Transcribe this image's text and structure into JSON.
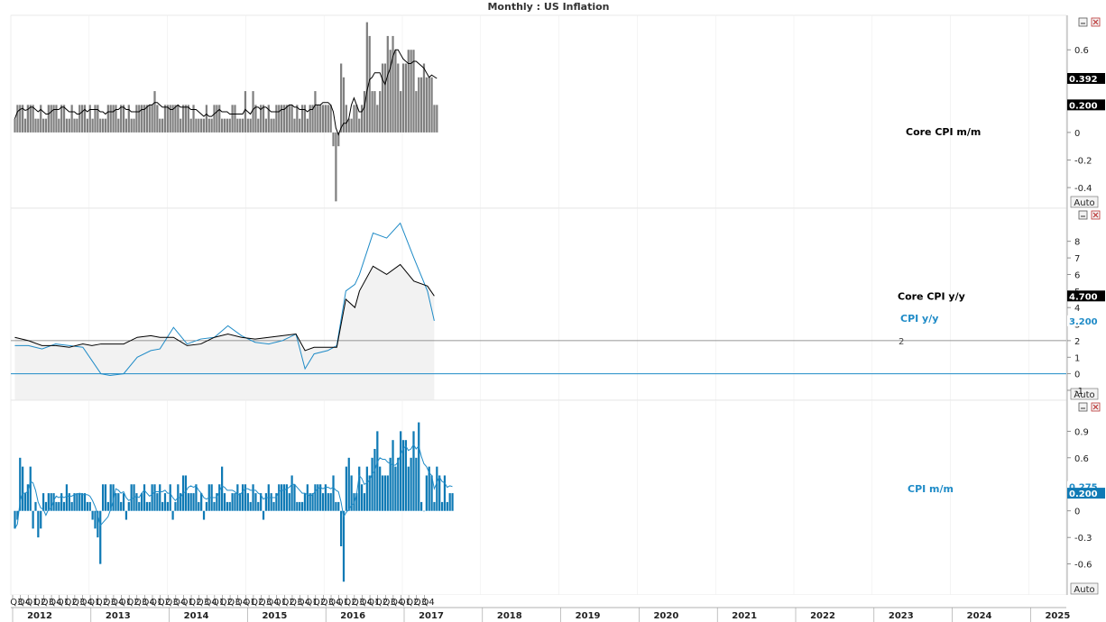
{
  "window": {
    "title": "Monthly : US Inflation",
    "auto_label": "Auto",
    "minimize_icon": "minimize-icon",
    "close_icon": "close-icon"
  },
  "colors": {
    "core_bar": "#808080",
    "core_line": "#000000",
    "cpi_blue": "#1f8bc7",
    "cpi_bar": "#0f7ab5",
    "panel_bg": "#ffffff",
    "area_fill": "#f2f2f2",
    "grid": "#eeeeee"
  },
  "x_axis": {
    "quarter_labels": [
      "Q3",
      "Q4",
      "Q1",
      "Q2",
      "Q3",
      "Q4",
      "Q1",
      "Q2",
      "Q3",
      "Q4",
      "Q1",
      "Q2",
      "Q3",
      "Q4",
      "Q1",
      "Q2",
      "Q3",
      "Q4",
      "Q1",
      "Q2",
      "Q3",
      "Q4",
      "Q1",
      "Q2",
      "Q3",
      "Q4",
      "Q1",
      "Q2",
      "Q3",
      "Q4",
      "Q1",
      "Q2",
      "Q3",
      "Q4",
      "Q1",
      "Q2",
      "Q3",
      "Q4",
      "Q1",
      "Q2",
      "Q3",
      "Q4",
      "Q1",
      "Q2",
      "Q3",
      "Q4",
      "Q1",
      "Q2",
      "Q3",
      "Q4",
      "Q1",
      "Q2",
      "Q3",
      "Q4"
    ],
    "years": [
      "2012",
      "2013",
      "2014",
      "2015",
      "2016",
      "2017",
      "2018",
      "2019",
      "2020",
      "2021",
      "2022",
      "2023",
      "2024",
      "2025"
    ]
  },
  "chart_data": [
    {
      "type": "bar",
      "title": "Monthly : US Inflation",
      "series": [
        {
          "name": "Core CPI m/m",
          "role": "bars",
          "values": [
            0.1,
            0.2,
            0.2,
            0.2,
            0.1,
            0.2,
            0.2,
            0.2,
            0.1,
            0.1,
            0.2,
            0.1,
            0.1,
            0.2,
            0.2,
            0.2,
            0.2,
            0.1,
            0.2,
            0.2,
            0.1,
            0.1,
            0.2,
            0.1,
            0.1,
            0.2,
            0.2,
            0.2,
            0.1,
            0.2,
            0.1,
            0.2,
            0.2,
            0.1,
            0.1,
            0.1,
            0.2,
            0.2,
            0.2,
            0.2,
            0.1,
            0.2,
            0.2,
            0.1,
            0.2,
            0.1,
            0.1,
            0.2,
            0.2,
            0.2,
            0.2,
            0.2,
            0.2,
            0.2,
            0.3,
            0.2,
            0.1,
            0.1,
            0.2,
            0.2,
            0.2,
            0.2,
            0.2,
            0.2,
            0.1,
            0.2,
            0.2,
            0.2,
            0.1,
            0.2,
            0.1,
            0.1,
            0.1,
            0.1,
            0.2,
            0.1,
            0.1,
            0.2,
            0.2,
            0.2,
            0.1,
            0.1,
            0.1,
            0.1,
            0.2,
            0.2,
            0.1,
            0.1,
            0.1,
            0.3,
            0.1,
            0.1,
            0.3,
            0.2,
            0.1,
            0.2,
            0.2,
            0.1,
            0.2,
            0.1,
            0.1,
            0.2,
            0.2,
            0.2,
            0.2,
            0.2,
            0.2,
            0.2,
            0.1,
            0.2,
            0.1,
            0.2,
            0.2,
            0.1,
            0.2,
            0.2,
            0.3,
            0.2,
            0.2,
            0.2,
            0.2,
            0.2,
            0.2,
            -0.1,
            -0.5,
            -0.1,
            0.5,
            0.4,
            0.2,
            0.1,
            0.1,
            0.2,
            0.2,
            0.1,
            0.2,
            0.3,
            0.8,
            0.7,
            0.3,
            0.3,
            0.2,
            0.3,
            0.5,
            0.5,
            0.7,
            0.6,
            0.7,
            0.6,
            0.5,
            0.3,
            0.5,
            0.5,
            0.6,
            0.6,
            0.6,
            0.3,
            0.4,
            0.4,
            0.5,
            0.4,
            0.4,
            0.4,
            0.2,
            0.2
          ]
        },
        {
          "name": "Core CPI m/m (moving average)",
          "role": "line",
          "last": 0.392
        }
      ],
      "last_values": [
        0.392,
        0.2
      ],
      "label": "Core CPI m/m",
      "yticks": [
        0.6,
        0.4,
        0.2,
        0,
        -0.2,
        -0.4
      ],
      "ylim": [
        -0.55,
        0.85
      ]
    },
    {
      "type": "line",
      "series": [
        {
          "name": "Core CPI y/y",
          "last": 4.7
        },
        {
          "name": "CPI y/y",
          "last": 3.2
        }
      ],
      "last_labels": [
        "4.700",
        "3.200"
      ],
      "reference_line": 2,
      "reference_label": "2",
      "yticks": [
        8,
        7,
        6,
        5,
        4,
        3,
        2,
        1,
        0,
        -1
      ],
      "ylim": [
        -1.6,
        10.0
      ]
    },
    {
      "type": "bar",
      "series": [
        {
          "name": "CPI m/m",
          "role": "bars",
          "values": [
            -0.2,
            -0.1,
            0.6,
            0.5,
            0.2,
            0.3,
            0.5,
            -0.2,
            0.1,
            -0.3,
            -0.2,
            0.2,
            0.1,
            0.2,
            0.2,
            0.2,
            0.1,
            0.1,
            0.2,
            0.1,
            0.3,
            0.2,
            0.1,
            0.2,
            0.2,
            0.2,
            0.2,
            0.2,
            0.1,
            0.1,
            -0.1,
            -0.2,
            -0.3,
            -0.6,
            0.3,
            0.3,
            0.1,
            0.3,
            0.3,
            0.2,
            0.2,
            0.1,
            0.2,
            -0.1,
            0.1,
            0.3,
            0.3,
            0.2,
            0.1,
            0.2,
            0.3,
            0.1,
            0.1,
            0.3,
            0.3,
            0.2,
            0.3,
            0.1,
            0.2,
            0.1,
            0.3,
            -0.1,
            0.1,
            0.3,
            0.2,
            0.4,
            0.4,
            0.2,
            0.2,
            0.2,
            0.3,
            0.1,
            0.2,
            -0.1,
            0.1,
            0.3,
            0.3,
            0.1,
            0.2,
            0.3,
            0.5,
            0.2,
            0.1,
            0.1,
            0.2,
            0.2,
            0.3,
            0.2,
            0.3,
            0.3,
            0.2,
            0.1,
            0.3,
            0.2,
            0.1,
            0.2,
            -0.1,
            0.2,
            0.3,
            0.2,
            0.1,
            0.2,
            0.3,
            0.3,
            0.3,
            0.3,
            0.2,
            0.4,
            0.3,
            0.1,
            0.1,
            0.1,
            0.2,
            0.3,
            0.2,
            0.2,
            0.3,
            0.3,
            0.3,
            0.2,
            0.3,
            0.2,
            0.2,
            0.4,
            0.1,
            0.1,
            -0.4,
            -0.8,
            0.5,
            0.6,
            0.4,
            0.2,
            0.2,
            0.5,
            0.3,
            0.2,
            0.5,
            0.4,
            0.6,
            0.7,
            0.9,
            0.5,
            0.4,
            0.4,
            0.4,
            0.6,
            0.8,
            0.5,
            0.6,
            0.9,
            0.8,
            0.8,
            0.5,
            0.6,
            0.9,
            0.6,
            1.0,
            0.1,
            0.0,
            0.4,
            0.5,
            0.4,
            0.1,
            0.5,
            0.4,
            0.1,
            0.4,
            0.1,
            0.2,
            0.2
          ]
        },
        {
          "name": "CPI m/m (moving average)",
          "role": "line",
          "last": 0.275
        }
      ],
      "last_values": [
        0.275,
        0.2
      ],
      "label": "CPI m/m",
      "yticks": [
        0.9,
        0.6,
        0.3,
        0,
        -0.3,
        -0.6
      ],
      "ylim": [
        -0.95,
        1.25
      ]
    }
  ]
}
